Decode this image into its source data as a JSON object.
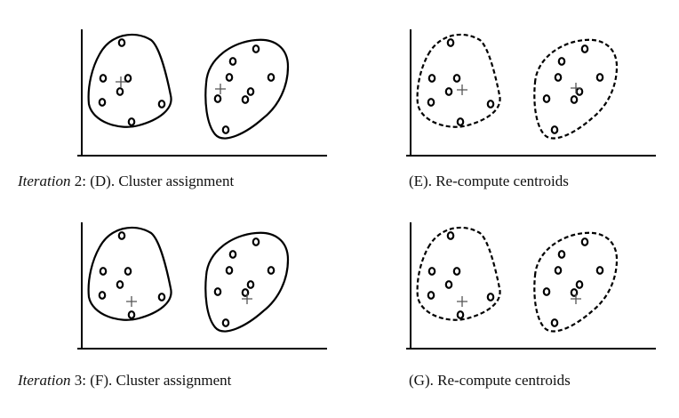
{
  "captions": {
    "d_prefix": "Iteration",
    "d_rest": " 2:  (D). Cluster assignment",
    "e": "(E). Re-compute centroids",
    "f_prefix": "Iteration",
    "f_rest": " 3:  (F). Cluster assignment",
    "g": "(G). Re-compute centroids"
  },
  "panels": [
    {
      "id": "D",
      "boundary": "solid",
      "left_points": [
        [
          51,
          33
        ],
        [
          31,
          48
        ],
        [
          30,
          53
        ],
        [
          39,
          64
        ],
        [
          44,
          58
        ],
        [
          41,
          75
        ],
        [
          41,
          80
        ],
        [
          36,
          90
        ],
        [
          43,
          93
        ],
        [
          57,
          98
        ],
        [
          56,
          99
        ],
        [
          32,
          103
        ],
        [
          39,
          105
        ]
      ],
      "left_center": [
        37,
        73
      ],
      "right_points": [
        [
          37,
          33
        ],
        [
          43,
          35
        ],
        [
          27,
          40
        ],
        [
          33,
          49
        ],
        [
          32,
          55
        ],
        [
          44,
          60
        ],
        [
          49,
          61
        ],
        [
          24,
          70
        ],
        [
          21,
          76
        ],
        [
          29,
          80
        ],
        [
          31,
          87
        ],
        [
          37,
          90
        ],
        [
          31,
          94
        ],
        [
          23,
          97
        ]
      ],
      "right_center": [
        38,
        68
      ]
    },
    {
      "id": "E",
      "boundary": "dashed",
      "left_points": [
        [
          51,
          33
        ],
        [
          31,
          48
        ],
        [
          30,
          53
        ],
        [
          39,
          64
        ],
        [
          44,
          58
        ],
        [
          41,
          75
        ],
        [
          41,
          80
        ],
        [
          36,
          90
        ],
        [
          43,
          93
        ],
        [
          57,
          98
        ],
        [
          56,
          99
        ],
        [
          32,
          103
        ],
        [
          39,
          105
        ]
      ],
      "left_center": [
        34,
        84
      ],
      "right_points": [
        [
          37,
          33
        ],
        [
          43,
          35
        ],
        [
          27,
          40
        ],
        [
          33,
          49
        ],
        [
          32,
          55
        ],
        [
          44,
          60
        ],
        [
          49,
          61
        ],
        [
          24,
          70
        ],
        [
          21,
          76
        ],
        [
          29,
          80
        ],
        [
          31,
          87
        ],
        [
          37,
          90
        ],
        [
          31,
          94
        ],
        [
          23,
          97
        ]
      ],
      "right_center": [
        32,
        56
      ]
    },
    {
      "id": "F",
      "boundary": "solid",
      "left_points": [
        [
          51,
          33
        ],
        [
          31,
          48
        ],
        [
          30,
          53
        ],
        [
          39,
          64
        ],
        [
          44,
          58
        ],
        [
          41,
          75
        ],
        [
          41,
          80
        ],
        [
          36,
          90
        ],
        [
          43,
          93
        ],
        [
          57,
          98
        ],
        [
          56,
          99
        ],
        [
          32,
          103
        ],
        [
          39,
          105
        ]
      ],
      "left_center": [
        34,
        84
      ],
      "right_points": [
        [
          37,
          33
        ],
        [
          43,
          35
        ],
        [
          27,
          40
        ],
        [
          33,
          49
        ],
        [
          32,
          55
        ],
        [
          44,
          60
        ],
        [
          49,
          61
        ],
        [
          24,
          70
        ],
        [
          21,
          76
        ],
        [
          29,
          80
        ],
        [
          31,
          87
        ],
        [
          37,
          90
        ],
        [
          31,
          94
        ],
        [
          23,
          97
        ]
      ],
      "right_center": [
        32,
        56
      ]
    },
    {
      "id": "G",
      "boundary": "dashed",
      "left_points": [
        [
          51,
          33
        ],
        [
          31,
          48
        ],
        [
          30,
          53
        ],
        [
          39,
          64
        ],
        [
          44,
          58
        ],
        [
          41,
          75
        ],
        [
          41,
          80
        ],
        [
          36,
          90
        ],
        [
          43,
          93
        ],
        [
          57,
          98
        ],
        [
          56,
          99
        ],
        [
          32,
          103
        ],
        [
          39,
          105
        ]
      ],
      "left_center": [
        34,
        84
      ],
      "right_points": [
        [
          37,
          33
        ],
        [
          43,
          35
        ],
        [
          27,
          40
        ],
        [
          33,
          49
        ],
        [
          32,
          55
        ],
        [
          44,
          60
        ],
        [
          49,
          61
        ],
        [
          24,
          70
        ],
        [
          21,
          76
        ],
        [
          29,
          80
        ],
        [
          31,
          87
        ],
        [
          37,
          90
        ],
        [
          31,
          94
        ],
        [
          23,
          97
        ]
      ],
      "right_center": [
        32,
        56
      ]
    }
  ]
}
